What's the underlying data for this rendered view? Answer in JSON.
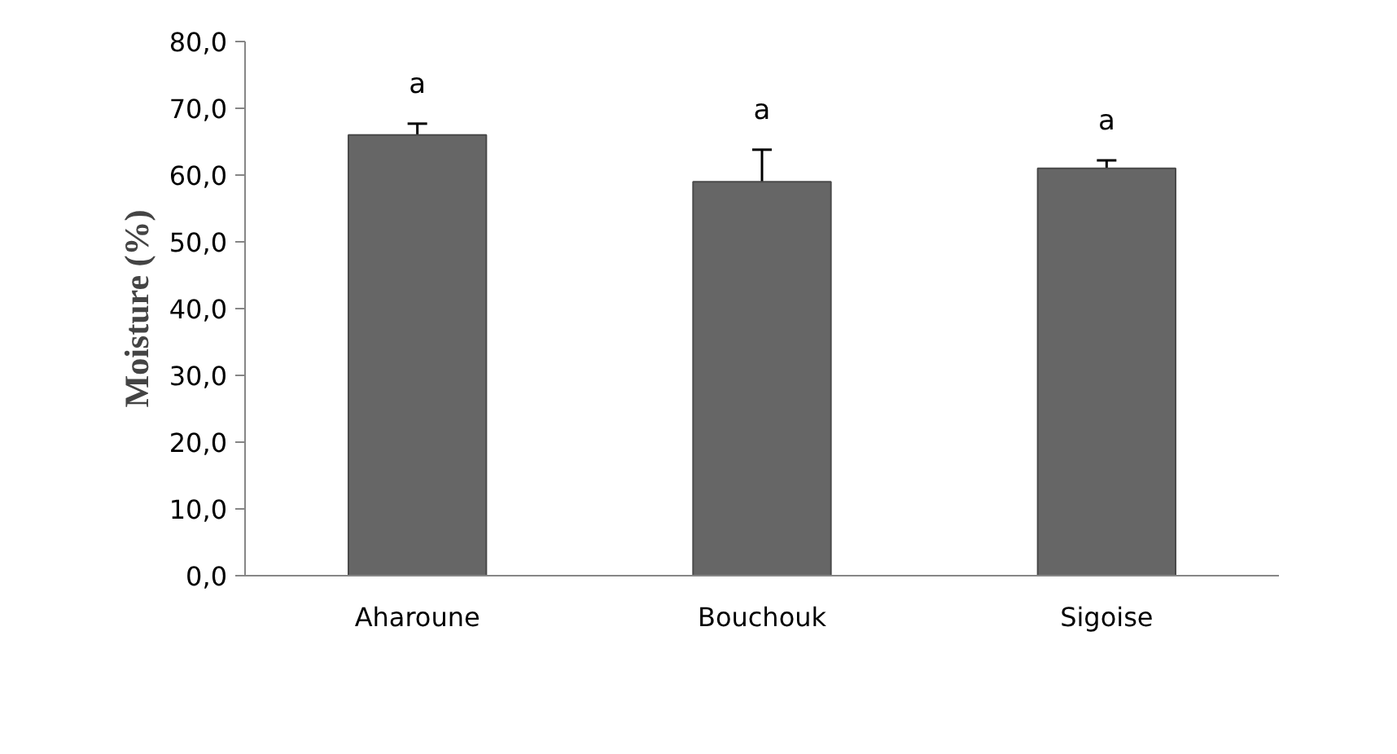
{
  "chart_data": {
    "type": "bar",
    "ylabel": "Moisture (%)",
    "categories": [
      "Aharoune",
      "Bouchouk",
      "Sigoise"
    ],
    "values": [
      66.0,
      59.0,
      61.0
    ],
    "errors": [
      1.7,
      4.8,
      1.2
    ],
    "color": "#666666",
    "ylim": [
      0,
      80
    ],
    "yticks": [
      {
        "value": 0,
        "label": "0,0"
      },
      {
        "value": 10,
        "label": "10,0"
      },
      {
        "value": 20,
        "label": "20,0"
      },
      {
        "value": 30,
        "label": "30,0"
      },
      {
        "value": 40,
        "label": "40,0"
      },
      {
        "value": 50,
        "label": "50,0"
      },
      {
        "value": 60,
        "label": "60,0"
      },
      {
        "value": 70,
        "label": "70,0"
      },
      {
        "value": 80,
        "label": "80,0"
      }
    ],
    "annotations": [
      "a",
      "a",
      "a"
    ],
    "grid": false
  }
}
